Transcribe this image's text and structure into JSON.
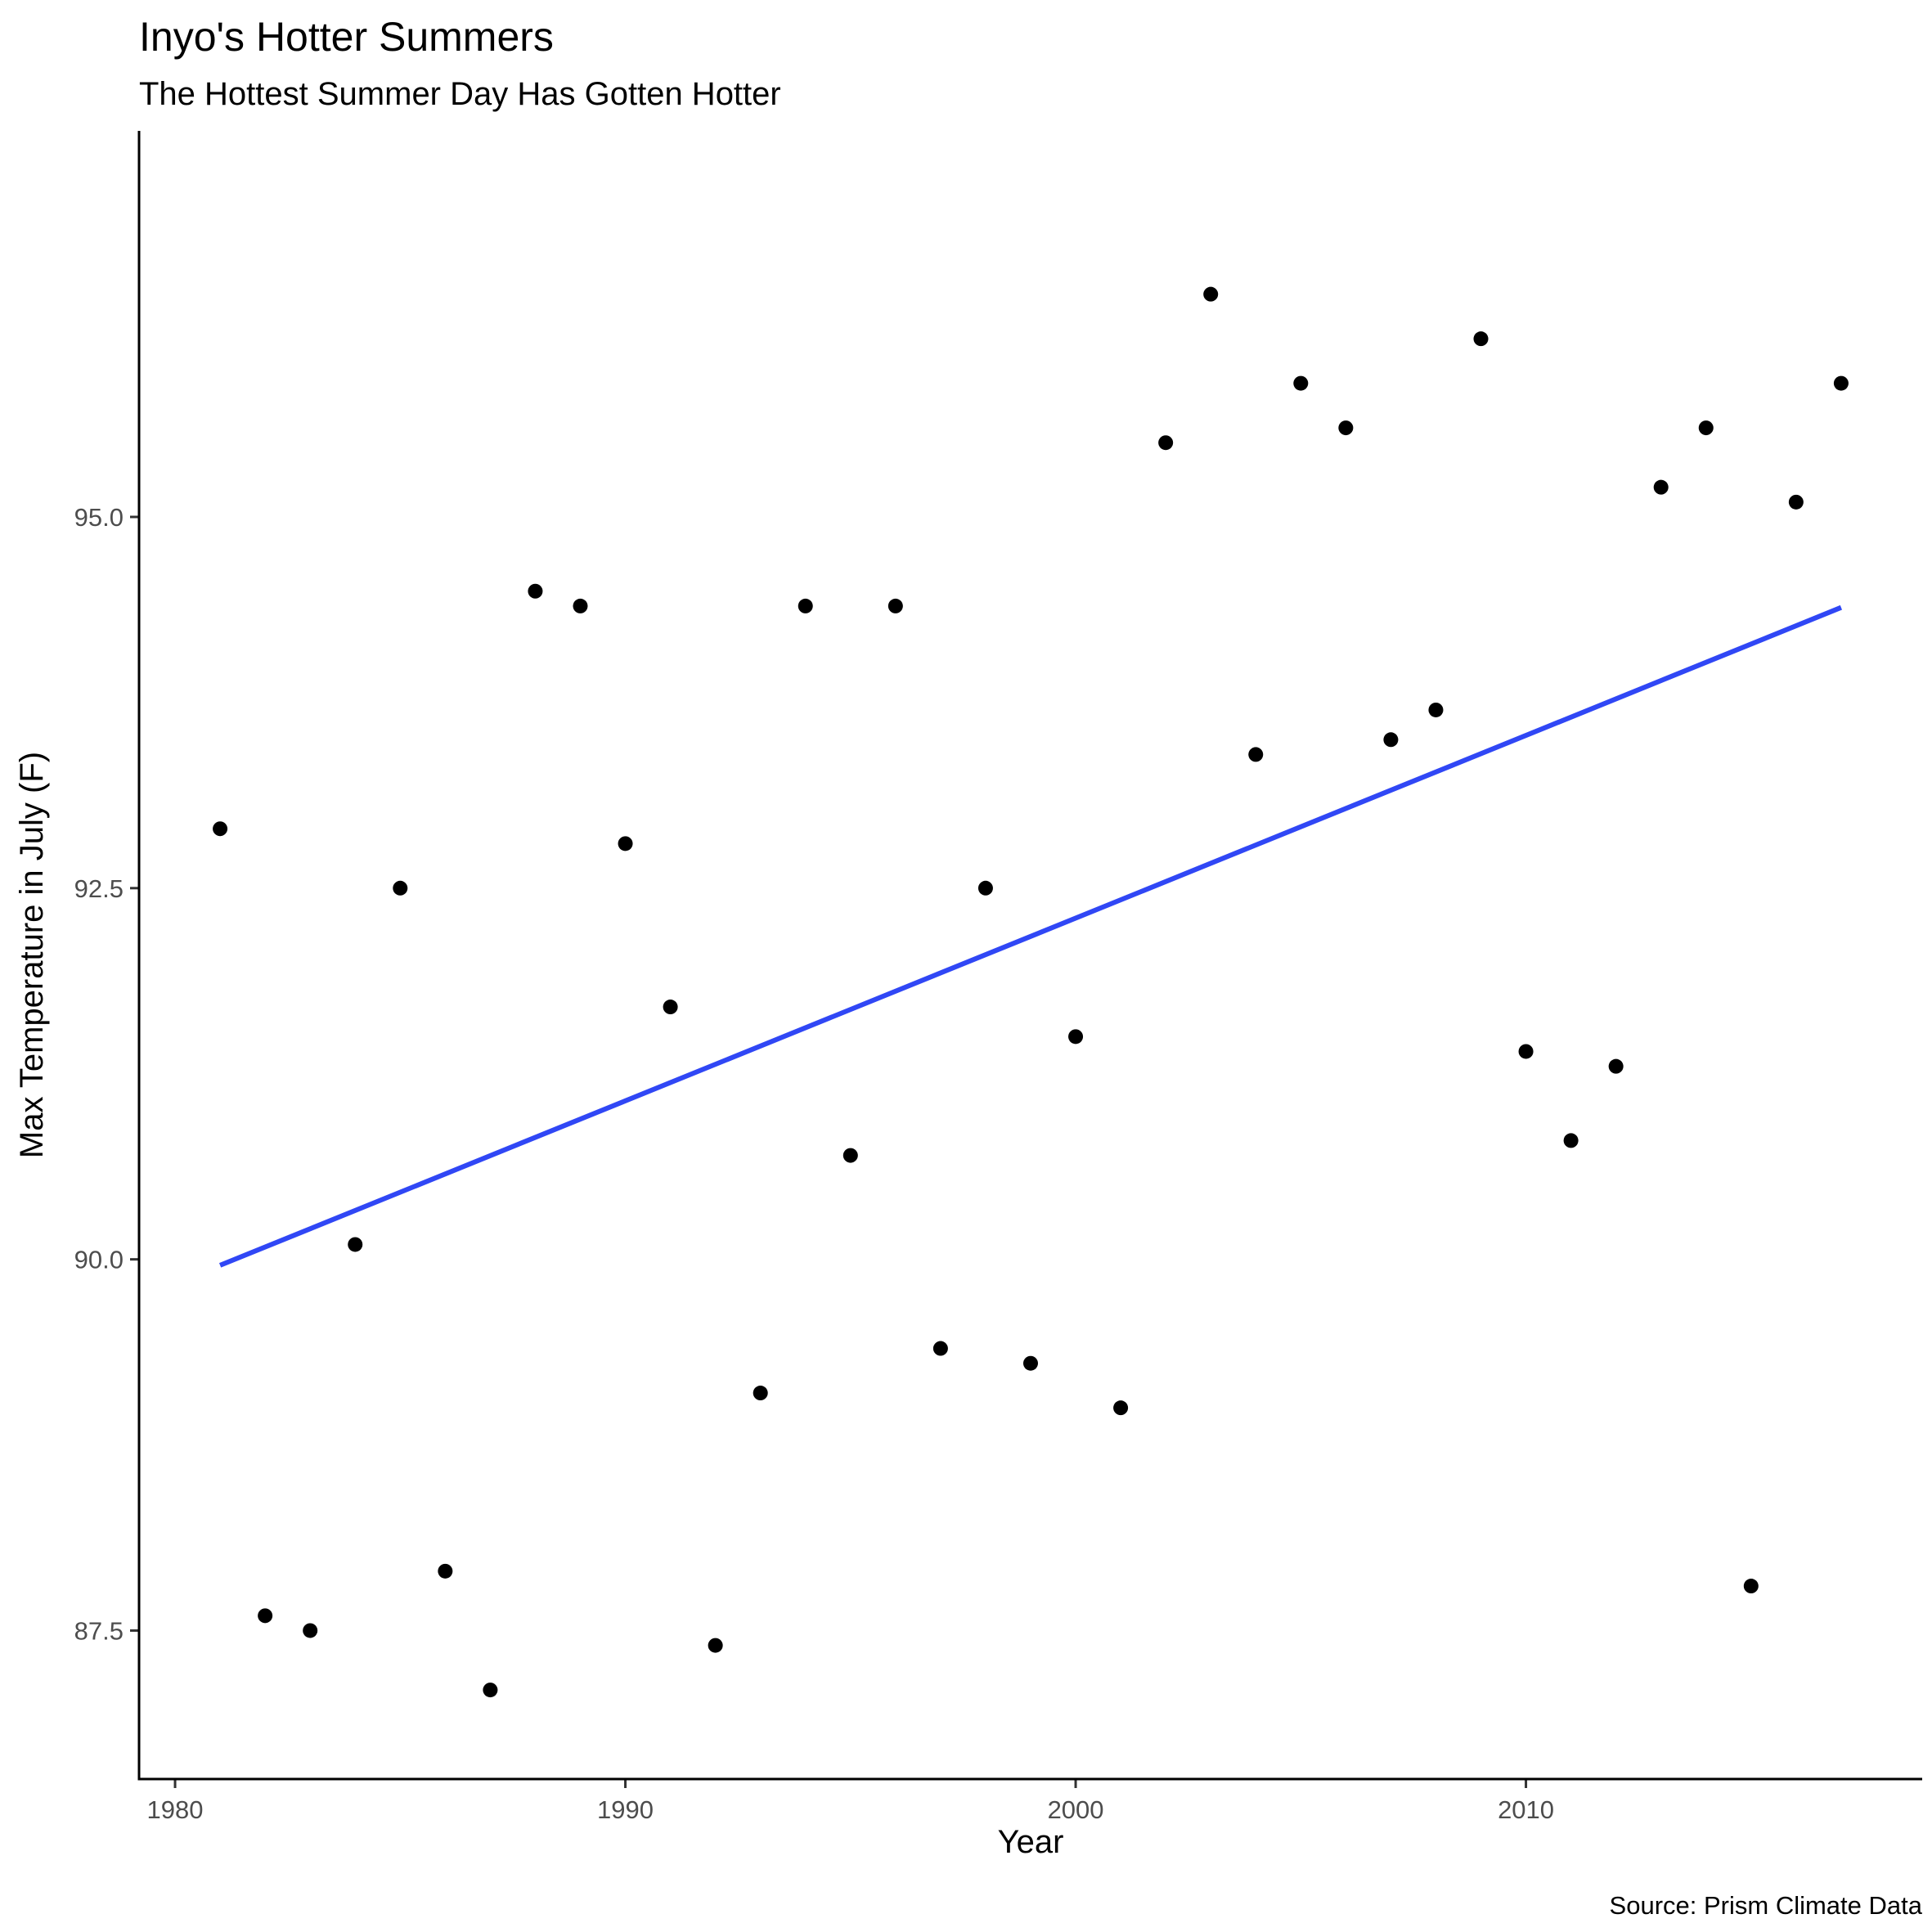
{
  "chart_data": {
    "type": "scatter",
    "title": "Inyo's Hotter Summers",
    "subtitle": "The Hottest Summer Day Has Gotten Hotter",
    "xlabel": "Year",
    "ylabel": "Max Temperature in July (F)",
    "caption": "Source: Prism Climate Data",
    "xlim": [
      1979.2,
      2018.8
    ],
    "ylim": [
      86.5,
      97.6
    ],
    "xticks": [
      1980,
      1990,
      2000,
      2010
    ],
    "xtick_labels": [
      "1980",
      "1990",
      "2000",
      "2010"
    ],
    "yticks": [
      87.5,
      90.0,
      92.5,
      95.0
    ],
    "ytick_labels": [
      "87.5",
      "90.0",
      "92.5",
      "95.0"
    ],
    "grid": false,
    "legend": "none",
    "point_color": "#000000",
    "trend_color": "#3047F5",
    "points": [
      {
        "x": 1981,
        "y": 92.9
      },
      {
        "x": 1982,
        "y": 87.6
      },
      {
        "x": 1983,
        "y": 87.5
      },
      {
        "x": 1984,
        "y": 90.1
      },
      {
        "x": 1985,
        "y": 92.5
      },
      {
        "x": 1986,
        "y": 87.9
      },
      {
        "x": 1987,
        "y": 87.1
      },
      {
        "x": 1988,
        "y": 94.5
      },
      {
        "x": 1989,
        "y": 94.4
      },
      {
        "x": 1990,
        "y": 92.8
      },
      {
        "x": 1991,
        "y": 91.7
      },
      {
        "x": 1992,
        "y": 87.4
      },
      {
        "x": 1993,
        "y": 89.1
      },
      {
        "x": 1994,
        "y": 94.4
      },
      {
        "x": 1995,
        "y": 90.7
      },
      {
        "x": 1996,
        "y": 94.4
      },
      {
        "x": 1997,
        "y": 89.4
      },
      {
        "x": 1998,
        "y": 92.5
      },
      {
        "x": 1999,
        "y": 89.3
      },
      {
        "x": 2000,
        "y": 91.5
      },
      {
        "x": 2001,
        "y": 89.0
      },
      {
        "x": 2002,
        "y": 95.5
      },
      {
        "x": 2003,
        "y": 96.5
      },
      {
        "x": 2004,
        "y": 93.4
      },
      {
        "x": 2005,
        "y": 95.9
      },
      {
        "x": 2006,
        "y": 95.6
      },
      {
        "x": 2007,
        "y": 93.5
      },
      {
        "x": 2008,
        "y": 93.7
      },
      {
        "x": 2009,
        "y": 96.2
      },
      {
        "x": 2010,
        "y": 91.4
      },
      {
        "x": 2011,
        "y": 90.8
      },
      {
        "x": 2012,
        "y": 91.3
      },
      {
        "x": 2013,
        "y": 95.2
      },
      {
        "x": 2014,
        "y": 95.6
      },
      {
        "x": 2015,
        "y": 87.8
      },
      {
        "x": 2016,
        "y": 95.1
      },
      {
        "x": 2017,
        "y": 95.9
      }
    ],
    "trend_line": {
      "x": [
        1981,
        2017
      ],
      "y": [
        89.96,
        94.39
      ]
    }
  }
}
